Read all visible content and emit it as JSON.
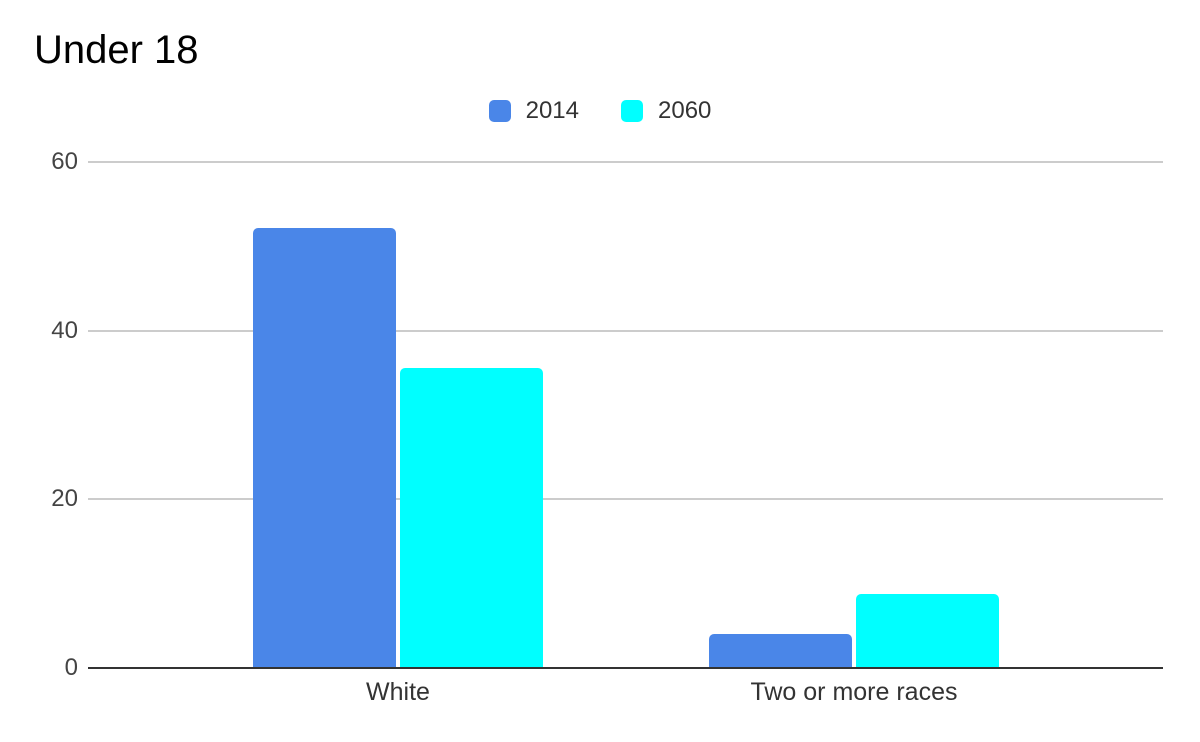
{
  "chart_data": {
    "type": "bar",
    "title": "Under 18",
    "categories": [
      "White",
      "Two or more races"
    ],
    "series": [
      {
        "name": "2014",
        "color": "#4a86e8",
        "values": [
          52.2,
          4.0
        ]
      },
      {
        "name": "2060",
        "color": "#00ffff",
        "values": [
          35.6,
          8.8
        ]
      }
    ],
    "xlabel": "",
    "ylabel": "",
    "ylim": [
      0,
      60
    ],
    "yticks": [
      0,
      20,
      40,
      60
    ],
    "legend_position": "top",
    "grid": "horizontal",
    "colors": {
      "gridline": "#cccccc",
      "baseline": "#333333",
      "title_text": "#000000",
      "axis_text": "#444444",
      "label_text": "#333333",
      "background": "#ffffff"
    }
  }
}
